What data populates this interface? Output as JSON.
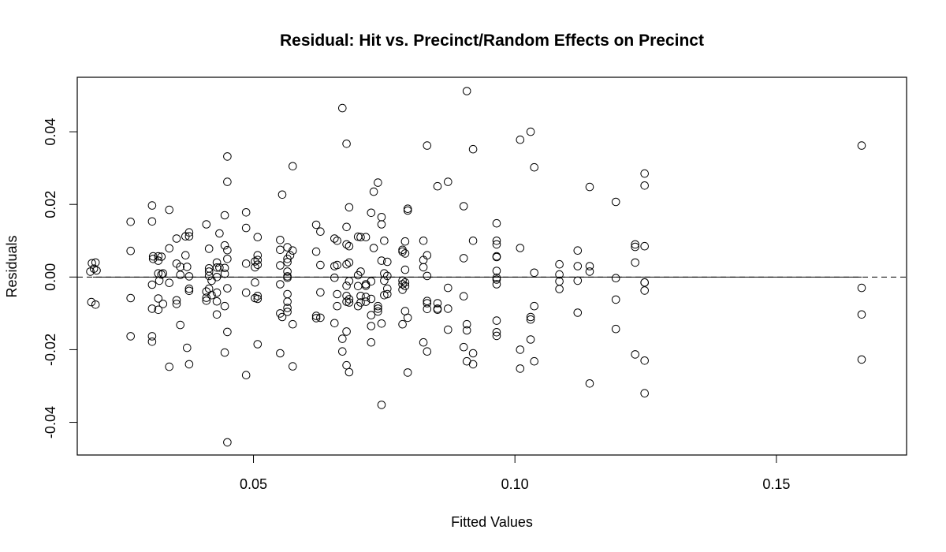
{
  "chart_data": {
    "type": "scatter",
    "title": "Residual: Hit vs. Precinct/Random Effects on Precinct",
    "xlabel": "Fitted Values",
    "ylabel": "Residuals",
    "xlim": [
      0.0163,
      0.1749
    ],
    "ylim": [
      -0.049,
      0.055
    ],
    "xticks": [
      {
        "value": 0.05,
        "label": "0.05"
      },
      {
        "value": 0.1,
        "label": "0.10"
      },
      {
        "value": 0.15,
        "label": "0.15"
      }
    ],
    "yticks": [
      {
        "value": -0.04,
        "label": "-0.04"
      },
      {
        "value": -0.02,
        "label": "-0.02"
      },
      {
        "value": 0.0,
        "label": "0.00"
      },
      {
        "value": 0.02,
        "label": "0.02"
      },
      {
        "value": 0.04,
        "label": "0.04"
      }
    ],
    "reference_line": {
      "y": 0,
      "style": "dashed"
    },
    "fit_line": {
      "x": [
        0.0193,
        0.1663
      ],
      "y": [
        0,
        0
      ],
      "style": "solid"
    },
    "points": [
      [
        0.0191,
        0.0038
      ],
      [
        0.0198,
        0.004
      ],
      [
        0.0195,
        0.0023
      ],
      [
        0.02,
        0.0018
      ],
      [
        0.0188,
        0.0015
      ],
      [
        0.019,
        -0.0069
      ],
      [
        0.0198,
        -0.0076
      ],
      [
        0.0265,
        0.0152
      ],
      [
        0.0265,
        0.0072
      ],
      [
        0.0265,
        -0.0058
      ],
      [
        0.0265,
        -0.0163
      ],
      [
        0.0306,
        0.0197
      ],
      [
        0.0306,
        0.0153
      ],
      [
        0.0308,
        0.0057
      ],
      [
        0.0308,
        0.005
      ],
      [
        0.0318,
        0.0045
      ],
      [
        0.0318,
        0.0057
      ],
      [
        0.0324,
        0.0056
      ],
      [
        0.0318,
        0.001
      ],
      [
        0.0324,
        0.0007
      ],
      [
        0.0327,
        0.001
      ],
      [
        0.032,
        -0.001
      ],
      [
        0.0306,
        -0.0021
      ],
      [
        0.0318,
        -0.0059
      ],
      [
        0.0327,
        -0.0074
      ],
      [
        0.0306,
        -0.0087
      ],
      [
        0.0318,
        -0.009
      ],
      [
        0.0306,
        -0.0163
      ],
      [
        0.0306,
        -0.0178
      ],
      [
        0.0339,
        0.0185
      ],
      [
        0.0339,
        0.0079
      ],
      [
        0.0339,
        -0.0016
      ],
      [
        0.0339,
        -0.0247
      ],
      [
        0.0353,
        0.0106
      ],
      [
        0.0353,
        0.0037
      ],
      [
        0.0353,
        -0.0064
      ],
      [
        0.0353,
        -0.0074
      ],
      [
        0.036,
        0.0028
      ],
      [
        0.036,
        0.0006
      ],
      [
        0.036,
        -0.0132
      ],
      [
        0.037,
        0.0112
      ],
      [
        0.037,
        0.006
      ],
      [
        0.0373,
        0.0028
      ],
      [
        0.0373,
        -0.0195
      ],
      [
        0.0377,
        0.0123
      ],
      [
        0.0377,
        0.0112
      ],
      [
        0.0377,
        0.0002
      ],
      [
        0.0377,
        -0.0032
      ],
      [
        0.0377,
        -0.0038
      ],
      [
        0.0377,
        -0.024
      ],
      [
        0.041,
        0.0145
      ],
      [
        0.041,
        -0.004
      ],
      [
        0.041,
        -0.0057
      ],
      [
        0.041,
        -0.0065
      ],
      [
        0.0415,
        0.0078
      ],
      [
        0.0415,
        0.0024
      ],
      [
        0.0415,
        0.0015
      ],
      [
        0.0415,
        0.0003
      ],
      [
        0.0415,
        -0.0032
      ],
      [
        0.042,
        -0.001
      ],
      [
        0.042,
        -0.005
      ],
      [
        0.043,
        0.004
      ],
      [
        0.043,
        0.0026
      ],
      [
        0.043,
        0.0
      ],
      [
        0.043,
        -0.0043
      ],
      [
        0.043,
        -0.0067
      ],
      [
        0.043,
        -0.0103
      ],
      [
        0.0435,
        0.012
      ],
      [
        0.0435,
        0.0026
      ],
      [
        0.0445,
        0.017
      ],
      [
        0.0445,
        0.0087
      ],
      [
        0.0445,
        0.0025
      ],
      [
        0.0445,
        0.0009
      ],
      [
        0.0445,
        -0.008
      ],
      [
        0.0445,
        -0.0208
      ],
      [
        0.045,
        0.0332
      ],
      [
        0.045,
        0.0262
      ],
      [
        0.045,
        0.0074
      ],
      [
        0.045,
        0.005
      ],
      [
        0.045,
        -0.0031
      ],
      [
        0.045,
        -0.0151
      ],
      [
        0.045,
        -0.0455
      ],
      [
        0.0486,
        0.0178
      ],
      [
        0.0486,
        0.0135
      ],
      [
        0.0486,
        0.0037
      ],
      [
        0.0486,
        -0.0043
      ],
      [
        0.0486,
        -0.027
      ],
      [
        0.0503,
        0.0043
      ],
      [
        0.0503,
        0.0027
      ],
      [
        0.0503,
        -0.0015
      ],
      [
        0.0503,
        -0.0058
      ],
      [
        0.0508,
        0.011
      ],
      [
        0.0508,
        0.006
      ],
      [
        0.0508,
        0.0047
      ],
      [
        0.0508,
        0.0034
      ],
      [
        0.0508,
        -0.0052
      ],
      [
        0.0508,
        -0.006
      ],
      [
        0.0508,
        -0.0185
      ],
      [
        0.0551,
        0.0102
      ],
      [
        0.0551,
        0.0075
      ],
      [
        0.0551,
        0.0032
      ],
      [
        0.0551,
        -0.002
      ],
      [
        0.0551,
        -0.01
      ],
      [
        0.0551,
        -0.021
      ],
      [
        0.0555,
        0.0227
      ],
      [
        0.0555,
        -0.011
      ],
      [
        0.0565,
        0.0082
      ],
      [
        0.0565,
        0.005
      ],
      [
        0.0565,
        0.0041
      ],
      [
        0.0565,
        0.0015
      ],
      [
        0.0565,
        0.0002
      ],
      [
        0.0565,
        -0.0002
      ],
      [
        0.0565,
        -0.0047
      ],
      [
        0.0565,
        -0.0068
      ],
      [
        0.0565,
        -0.0085
      ],
      [
        0.0565,
        -0.0096
      ],
      [
        0.057,
        0.006
      ],
      [
        0.0575,
        0.0305
      ],
      [
        0.0575,
        0.0073
      ],
      [
        0.0575,
        -0.013
      ],
      [
        0.0575,
        -0.0246
      ],
      [
        0.062,
        0.0144
      ],
      [
        0.062,
        0.007
      ],
      [
        0.062,
        -0.0107
      ],
      [
        0.062,
        -0.0113
      ],
      [
        0.0628,
        0.0125
      ],
      [
        0.0628,
        0.0033
      ],
      [
        0.0628,
        -0.0042
      ],
      [
        0.0628,
        -0.0112
      ],
      [
        0.0655,
        0.0106
      ],
      [
        0.0655,
        0.003
      ],
      [
        0.0655,
        -0.0002
      ],
      [
        0.0655,
        -0.0127
      ],
      [
        0.066,
        0.01
      ],
      [
        0.066,
        0.0033
      ],
      [
        0.066,
        -0.0047
      ],
      [
        0.066,
        -0.008
      ],
      [
        0.067,
        0.0465
      ],
      [
        0.067,
        -0.017
      ],
      [
        0.067,
        -0.0205
      ],
      [
        0.0678,
        0.0367
      ],
      [
        0.0678,
        0.0138
      ],
      [
        0.0678,
        0.009
      ],
      [
        0.0678,
        0.0035
      ],
      [
        0.0678,
        -0.0024
      ],
      [
        0.0678,
        -0.0052
      ],
      [
        0.0678,
        -0.0068
      ],
      [
        0.0678,
        -0.015
      ],
      [
        0.0678,
        -0.0243
      ],
      [
        0.0683,
        0.0192
      ],
      [
        0.0683,
        0.0085
      ],
      [
        0.0683,
        0.004
      ],
      [
        0.0683,
        -0.0011
      ],
      [
        0.0683,
        -0.0061
      ],
      [
        0.0683,
        -0.007
      ],
      [
        0.0683,
        -0.0262
      ],
      [
        0.07,
        0.0111
      ],
      [
        0.07,
        0.0005
      ],
      [
        0.07,
        -0.0025
      ],
      [
        0.07,
        -0.008
      ],
      [
        0.0705,
        0.011
      ],
      [
        0.0705,
        0.0015
      ],
      [
        0.0705,
        -0.0052
      ],
      [
        0.0705,
        -0.007
      ],
      [
        0.0715,
        0.011
      ],
      [
        0.0715,
        -0.002
      ],
      [
        0.0715,
        -0.0024
      ],
      [
        0.0715,
        -0.0055
      ],
      [
        0.0715,
        -0.0068
      ],
      [
        0.0725,
        0.0177
      ],
      [
        0.0725,
        -0.0012
      ],
      [
        0.0725,
        -0.006
      ],
      [
        0.0725,
        -0.0105
      ],
      [
        0.0725,
        -0.0135
      ],
      [
        0.0725,
        -0.018
      ],
      [
        0.073,
        0.0235
      ],
      [
        0.073,
        0.008
      ],
      [
        0.0738,
        0.026
      ],
      [
        0.0738,
        -0.008
      ],
      [
        0.0738,
        -0.0087
      ],
      [
        0.0738,
        -0.0095
      ],
      [
        0.0745,
        0.0165
      ],
      [
        0.0745,
        0.0145
      ],
      [
        0.0745,
        0.0045
      ],
      [
        0.0745,
        -0.0128
      ],
      [
        0.0745,
        -0.0352
      ],
      [
        0.075,
        0.01
      ],
      [
        0.075,
        0.001
      ],
      [
        0.075,
        -0.001
      ],
      [
        0.075,
        -0.005
      ],
      [
        0.0756,
        0.0042
      ],
      [
        0.0756,
        0.0003
      ],
      [
        0.0756,
        -0.0032
      ],
      [
        0.0756,
        -0.0047
      ],
      [
        0.0785,
        0.0075
      ],
      [
        0.0785,
        0.007
      ],
      [
        0.0785,
        -0.001
      ],
      [
        0.0785,
        -0.002
      ],
      [
        0.0785,
        -0.0035
      ],
      [
        0.0785,
        -0.013
      ],
      [
        0.079,
        0.0098
      ],
      [
        0.079,
        0.0065
      ],
      [
        0.079,
        0.002
      ],
      [
        0.079,
        -0.0015
      ],
      [
        0.079,
        -0.0025
      ],
      [
        0.079,
        -0.0094
      ],
      [
        0.0795,
        0.0188
      ],
      [
        0.0795,
        0.0183
      ],
      [
        0.0795,
        -0.0112
      ],
      [
        0.0795,
        -0.0263
      ],
      [
        0.0825,
        0.01
      ],
      [
        0.0825,
        0.0047
      ],
      [
        0.0825,
        0.0027
      ],
      [
        0.0825,
        -0.018
      ],
      [
        0.0832,
        0.0362
      ],
      [
        0.0832,
        0.006
      ],
      [
        0.0832,
        0.0003
      ],
      [
        0.0832,
        -0.0066
      ],
      [
        0.0832,
        -0.0072
      ],
      [
        0.0832,
        -0.0088
      ],
      [
        0.0832,
        -0.0205
      ],
      [
        0.0852,
        0.025
      ],
      [
        0.0852,
        -0.0072
      ],
      [
        0.0852,
        -0.0087
      ],
      [
        0.0852,
        -0.009
      ],
      [
        0.0872,
        0.0262
      ],
      [
        0.0872,
        -0.003
      ],
      [
        0.0872,
        -0.0087
      ],
      [
        0.0872,
        -0.0145
      ],
      [
        0.0902,
        0.0195
      ],
      [
        0.0902,
        0.0052
      ],
      [
        0.0902,
        -0.0053
      ],
      [
        0.0902,
        -0.0193
      ],
      [
        0.0908,
        0.0512
      ],
      [
        0.0908,
        -0.013
      ],
      [
        0.0908,
        -0.0147
      ],
      [
        0.0908,
        -0.0232
      ],
      [
        0.092,
        0.0352
      ],
      [
        0.092,
        0.01
      ],
      [
        0.092,
        -0.021
      ],
      [
        0.092,
        -0.024
      ],
      [
        0.0965,
        0.0148
      ],
      [
        0.0965,
        0.01
      ],
      [
        0.0965,
        0.009
      ],
      [
        0.0965,
        0.0057
      ],
      [
        0.0965,
        0.0055
      ],
      [
        0.0965,
        0.0017
      ],
      [
        0.0965,
        -0.0002
      ],
      [
        0.0965,
        -0.0007
      ],
      [
        0.0965,
        -0.002
      ],
      [
        0.0965,
        -0.012
      ],
      [
        0.0965,
        -0.0152
      ],
      [
        0.0965,
        -0.0162
      ],
      [
        0.101,
        0.0378
      ],
      [
        0.101,
        0.008
      ],
      [
        0.101,
        -0.02
      ],
      [
        0.101,
        -0.0252
      ],
      [
        0.103,
        0.04
      ],
      [
        0.103,
        -0.011
      ],
      [
        0.103,
        -0.0117
      ],
      [
        0.103,
        -0.0172
      ],
      [
        0.1037,
        0.0302
      ],
      [
        0.1037,
        0.0012
      ],
      [
        0.1037,
        -0.008
      ],
      [
        0.1037,
        -0.0232
      ],
      [
        0.1085,
        0.0035
      ],
      [
        0.1085,
        0.0007
      ],
      [
        0.1085,
        -0.0012
      ],
      [
        0.1085,
        -0.0033
      ],
      [
        0.112,
        0.0073
      ],
      [
        0.112,
        0.003
      ],
      [
        0.112,
        -0.001
      ],
      [
        0.112,
        -0.0098
      ],
      [
        0.1143,
        0.0248
      ],
      [
        0.1143,
        0.003
      ],
      [
        0.1143,
        0.0015
      ],
      [
        0.1143,
        -0.0293
      ],
      [
        0.1193,
        0.0207
      ],
      [
        0.1193,
        -0.0003
      ],
      [
        0.1193,
        -0.0062
      ],
      [
        0.1193,
        -0.0143
      ],
      [
        0.123,
        0.009
      ],
      [
        0.123,
        0.0083
      ],
      [
        0.123,
        0.004
      ],
      [
        0.123,
        -0.0213
      ],
      [
        0.1248,
        0.0285
      ],
      [
        0.1248,
        0.0252
      ],
      [
        0.1248,
        0.0085
      ],
      [
        0.1248,
        -0.0015
      ],
      [
        0.1248,
        -0.0015
      ],
      [
        0.1248,
        -0.0037
      ],
      [
        0.1248,
        -0.023
      ],
      [
        0.1248,
        -0.032
      ],
      [
        0.1663,
        0.0362
      ],
      [
        0.1663,
        -0.003
      ],
      [
        0.1663,
        -0.0103
      ],
      [
        0.1663,
        -0.0227
      ]
    ]
  }
}
